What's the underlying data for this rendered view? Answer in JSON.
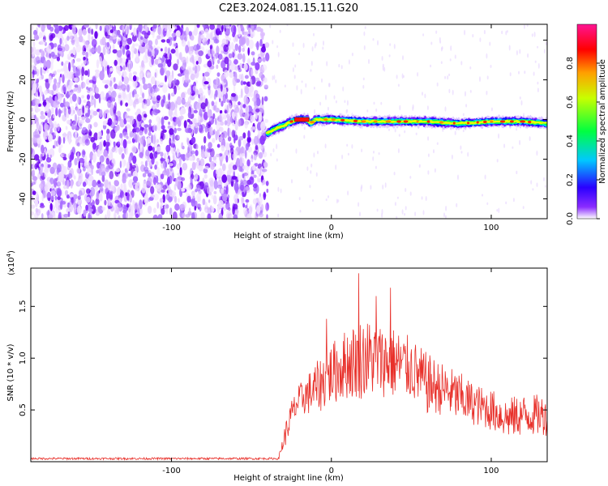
{
  "title": "C2E3.2024.081.15.11.G20",
  "chart_data": [
    {
      "type": "heatmap",
      "xlabel": "Height of straight line (km)",
      "ylabel": "Frequency (Hz)",
      "xlim": [
        -188,
        135
      ],
      "ylim": [
        -50,
        48
      ],
      "x_ticks": [
        -100,
        0,
        100
      ],
      "x_tick_labels": [
        "-100",
        "0",
        "100"
      ],
      "y_ticks": [
        40,
        20,
        0,
        -20,
        -40
      ],
      "y_tick_labels": [
        "40",
        "20",
        "0",
        "-20",
        "-40"
      ],
      "noise_region_x": [
        -188,
        -40
      ],
      "signal_track": {
        "x": [
          -40,
          -36,
          -30,
          -25,
          -20,
          -15,
          -13,
          -10,
          0,
          20,
          40,
          60,
          80,
          100,
          120,
          135
        ],
        "frequency": [
          -7,
          -5,
          -3,
          -1,
          0,
          0,
          -2,
          0,
          0,
          -1,
          -1,
          -1,
          -2,
          -1,
          -1,
          -2
        ],
        "peak_amplitude": 1.0
      },
      "colorbar": {
        "label": "Normalized spectral amplitude",
        "range": [
          0,
          1
        ],
        "ticks": [
          0.0,
          0.2,
          0.4,
          0.6,
          0.8
        ],
        "tick_labels": [
          "0.0",
          "0.2",
          "0.4",
          "0.6",
          "0.8"
        ],
        "colors": [
          "#ffffff",
          "#6a00ff",
          "#0000ff",
          "#00e5ff",
          "#00ff40",
          "#c8ff00",
          "#ffa000",
          "#ff0000",
          "#ff1493"
        ]
      }
    },
    {
      "type": "line",
      "xlabel": "Height of straight line (km)",
      "ylabel": "SNR (10 * v/v)",
      "y_scale_label": "(x10",
      "y_scale_exponent": "4",
      "y_scale_suffix": ")",
      "xlim": [
        -188,
        135
      ],
      "ylim": [
        0,
        1.87
      ],
      "x_ticks": [
        -100,
        0,
        100
      ],
      "x_tick_labels": [
        "-100",
        "0",
        "100"
      ],
      "y_ticks": [
        0.5,
        1.0,
        1.5
      ],
      "y_tick_labels": [
        "0.5",
        "1.0",
        "1.5"
      ],
      "color": "#e8302a",
      "series_envelope": {
        "x": [
          -188,
          -33,
          -30,
          -25,
          -20,
          -10,
          0,
          10,
          20,
          30,
          40,
          50,
          60,
          70,
          80,
          90,
          100,
          110,
          120,
          135
        ],
        "mean": [
          0.03,
          0.03,
          0.2,
          0.45,
          0.6,
          0.7,
          0.85,
          0.95,
          1.0,
          0.98,
          0.95,
          0.9,
          0.75,
          0.7,
          0.62,
          0.55,
          0.5,
          0.42,
          0.45,
          0.45
        ],
        "spread": [
          0.01,
          0.01,
          0.1,
          0.15,
          0.15,
          0.25,
          0.3,
          0.35,
          0.4,
          0.35,
          0.35,
          0.3,
          0.3,
          0.25,
          0.25,
          0.2,
          0.2,
          0.2,
          0.2,
          0.2
        ]
      },
      "peaks": [
        {
          "x": 17,
          "y": 1.82
        },
        {
          "x": 37,
          "y": 1.68
        },
        {
          "x": 28,
          "y": 1.6
        },
        {
          "x": -3,
          "y": 1.38
        }
      ]
    }
  ]
}
